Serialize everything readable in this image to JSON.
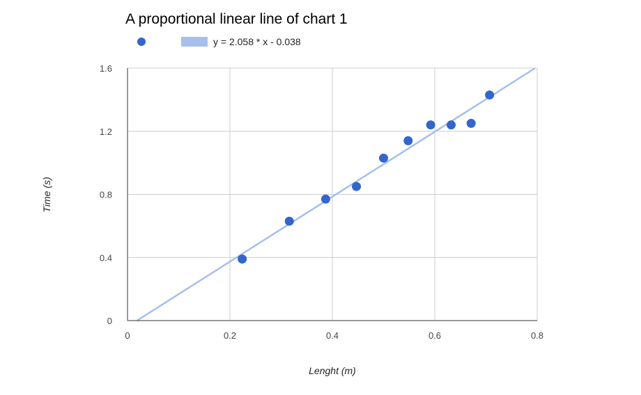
{
  "chart_data": {
    "type": "scatter",
    "title": "A proportional linear line of chart 1",
    "xlabel": "Lenght (m)",
    "ylabel": "Time (s)",
    "xlim": [
      0,
      0.8
    ],
    "ylim": [
      0,
      1.6
    ],
    "x_ticks": [
      "0",
      "0.2",
      "0.4",
      "0.6",
      "0.8"
    ],
    "y_ticks": [
      "0",
      "0.4",
      "0.8",
      "1.2",
      "1.6"
    ],
    "x_tick_values": [
      0,
      0.2,
      0.4,
      0.6,
      0.8
    ],
    "y_tick_values": [
      0,
      0.4,
      0.8,
      1.2,
      1.6
    ],
    "grid": true,
    "legend_position": "top",
    "series": [
      {
        "marker_color": "#3366cc",
        "x": [
          0.224,
          0.316,
          0.387,
          0.447,
          0.5,
          0.548,
          0.592,
          0.632,
          0.671,
          0.707
        ],
        "y": [
          0.39,
          0.63,
          0.77,
          0.85,
          1.03,
          1.14,
          1.24,
          1.24,
          1.25,
          1.43
        ]
      }
    ],
    "trendline": {
      "label": "y = 2.058 * x - 0.038",
      "slope": 2.058,
      "intercept": -0.038,
      "color": "#a6bfec"
    },
    "colors": {
      "grid": "#cccccc",
      "axis": "#333333"
    }
  }
}
